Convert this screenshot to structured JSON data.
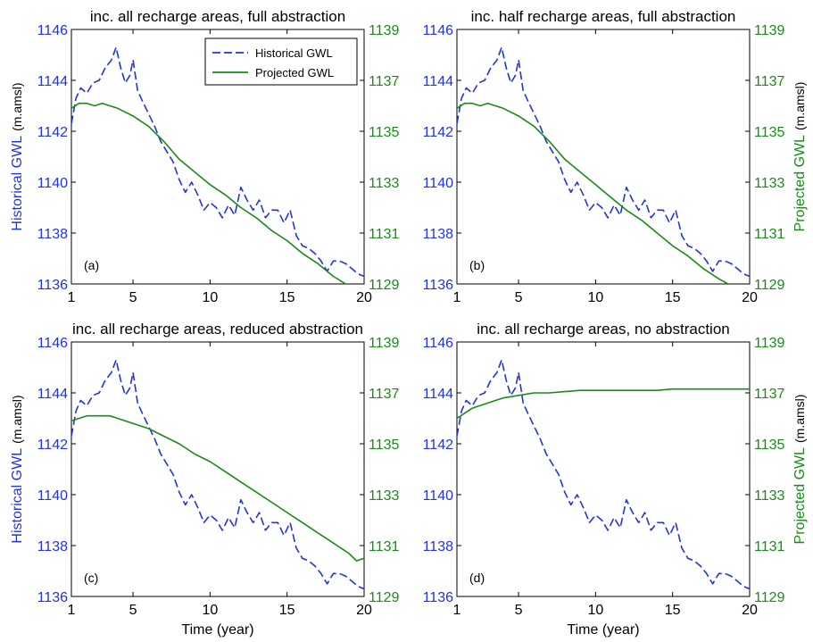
{
  "colors": {
    "historical": "#2233dd",
    "projected": "#1a8a1a",
    "axis": "#000000",
    "background": "#ffffff"
  },
  "chart_data": [
    {
      "type": "line",
      "title": "inc. all recharge areas, full abstraction",
      "panel_label": "(a)",
      "xlabel": "",
      "ylabel_left": "Historical GWL",
      "ylabel_left_unit": "(m.amsl)",
      "ylabel_right": "",
      "ylabel_right_unit": "",
      "xlim": [
        1,
        20
      ],
      "xticks": [
        "1",
        "5",
        "10",
        "15",
        "20"
      ],
      "ylim_left": [
        1136,
        1146
      ],
      "yticks_left": [
        "1136",
        "1138",
        "1140",
        "1142",
        "1144",
        "1146"
      ],
      "ylim_right": [
        1129,
        1139
      ],
      "yticks_right": [
        "1129",
        "1131",
        "1133",
        "1135",
        "1137",
        "1139"
      ],
      "legend": {
        "position": "top-right",
        "entries": [
          "Historical GWL",
          "Projected GWL"
        ]
      },
      "series": [
        {
          "name": "Historical GWL",
          "axis": "left",
          "style": "dashed",
          "x": [
            1,
            1.3,
            1.6,
            2.0,
            2.4,
            2.8,
            3.2,
            3.6,
            3.9,
            4.2,
            4.5,
            4.8,
            5.0,
            5.3,
            5.6,
            6.0,
            6.4,
            6.8,
            7.2,
            7.6,
            8.0,
            8.4,
            8.8,
            9.2,
            9.6,
            10.0,
            10.4,
            10.8,
            11.2,
            11.6,
            12.0,
            12.4,
            12.8,
            13.2,
            13.6,
            14.0,
            14.4,
            14.8,
            15.2,
            15.6,
            16.0,
            16.4,
            16.8,
            17.2,
            17.6,
            18.0,
            18.4,
            18.8,
            19.2,
            19.6,
            20.0
          ],
          "values": [
            1142.3,
            1143.3,
            1143.7,
            1143.5,
            1143.9,
            1144.0,
            1144.5,
            1144.8,
            1145.3,
            1144.5,
            1143.9,
            1144.2,
            1144.8,
            1143.6,
            1143.2,
            1142.7,
            1142.2,
            1141.6,
            1141.2,
            1140.8,
            1140.1,
            1139.6,
            1140.0,
            1139.5,
            1138.9,
            1139.2,
            1139.0,
            1138.6,
            1139.1,
            1138.7,
            1139.8,
            1139.3,
            1138.9,
            1139.3,
            1138.6,
            1138.9,
            1138.9,
            1138.4,
            1138.9,
            1137.9,
            1137.5,
            1137.4,
            1137.2,
            1136.9,
            1136.5,
            1136.9,
            1136.9,
            1136.8,
            1136.6,
            1136.4,
            1136.3
          ]
        },
        {
          "name": "Projected GWL",
          "axis": "right",
          "style": "solid",
          "x": [
            1,
            1.5,
            2.0,
            2.5,
            3.0,
            3.5,
            4.0,
            5.0,
            6.0,
            7.0,
            8.0,
            9.0,
            10.0,
            11.0,
            12.0,
            13.0,
            14.0,
            15.0,
            16.0,
            17.0,
            18.0,
            18.8
          ],
          "values": [
            1135.9,
            1136.1,
            1136.1,
            1136.0,
            1136.1,
            1136.0,
            1135.9,
            1135.6,
            1135.2,
            1134.6,
            1133.9,
            1133.4,
            1132.9,
            1132.5,
            1132.0,
            1131.6,
            1131.1,
            1130.7,
            1130.2,
            1129.8,
            1129.3,
            1129.0
          ]
        }
      ]
    },
    {
      "type": "line",
      "title": "inc. half recharge areas, full abstraction",
      "panel_label": "(b)",
      "xlabel": "",
      "ylabel_left": "",
      "ylabel_left_unit": "",
      "ylabel_right": "Projected GWL",
      "ylabel_right_unit": "(m.amsl)",
      "xlim": [
        1,
        20
      ],
      "xticks": [
        "1",
        "5",
        "10",
        "15",
        "20"
      ],
      "ylim_left": [
        1136,
        1146
      ],
      "yticks_left": [
        "1136",
        "1138",
        "1140",
        "1142",
        "1144",
        "1146"
      ],
      "ylim_right": [
        1129,
        1139
      ],
      "yticks_right": [
        "1129",
        "1131",
        "1133",
        "1135",
        "1137",
        "1139"
      ],
      "series": [
        {
          "name": "Historical GWL",
          "axis": "left",
          "style": "dashed",
          "x": [
            1,
            1.3,
            1.6,
            2.0,
            2.4,
            2.8,
            3.2,
            3.6,
            3.9,
            4.2,
            4.5,
            4.8,
            5.0,
            5.3,
            5.6,
            6.0,
            6.4,
            6.8,
            7.2,
            7.6,
            8.0,
            8.4,
            8.8,
            9.2,
            9.6,
            10.0,
            10.4,
            10.8,
            11.2,
            11.6,
            12.0,
            12.4,
            12.8,
            13.2,
            13.6,
            14.0,
            14.4,
            14.8,
            15.2,
            15.6,
            16.0,
            16.4,
            16.8,
            17.2,
            17.6,
            18.0,
            18.4,
            18.8,
            19.2,
            19.6,
            20.0
          ],
          "values": [
            1142.3,
            1143.3,
            1143.7,
            1143.5,
            1143.9,
            1144.0,
            1144.5,
            1144.8,
            1145.3,
            1144.5,
            1143.9,
            1144.2,
            1144.8,
            1143.6,
            1143.2,
            1142.7,
            1142.2,
            1141.6,
            1141.2,
            1140.8,
            1140.1,
            1139.6,
            1140.0,
            1139.5,
            1138.9,
            1139.2,
            1139.0,
            1138.6,
            1139.1,
            1138.7,
            1139.8,
            1139.3,
            1138.9,
            1139.3,
            1138.6,
            1138.9,
            1138.9,
            1138.4,
            1138.9,
            1137.9,
            1137.5,
            1137.4,
            1137.2,
            1136.9,
            1136.5,
            1136.9,
            1136.9,
            1136.8,
            1136.6,
            1136.4,
            1136.3
          ]
        },
        {
          "name": "Projected GWL",
          "axis": "right",
          "style": "solid",
          "x": [
            1,
            1.5,
            2.0,
            2.5,
            3.0,
            3.5,
            4.0,
            5.0,
            6.0,
            7.0,
            8.0,
            9.0,
            10.0,
            11.0,
            12.0,
            13.0,
            14.0,
            15.0,
            16.0,
            17.0,
            18.0,
            18.6
          ],
          "values": [
            1135.9,
            1136.1,
            1136.1,
            1136.0,
            1136.1,
            1136.0,
            1135.9,
            1135.6,
            1135.2,
            1134.6,
            1133.9,
            1133.4,
            1132.9,
            1132.4,
            1131.9,
            1131.5,
            1131.0,
            1130.5,
            1130.1,
            1129.6,
            1129.2,
            1129.0
          ]
        }
      ]
    },
    {
      "type": "line",
      "title": "inc. all recharge areas, reduced abstraction",
      "panel_label": "(c)",
      "xlabel": "Time (year)",
      "ylabel_left": "Historical GWL",
      "ylabel_left_unit": "(m.amsl)",
      "ylabel_right": "",
      "ylabel_right_unit": "",
      "xlim": [
        1,
        20
      ],
      "xticks": [
        "1",
        "5",
        "10",
        "15",
        "20"
      ],
      "ylim_left": [
        1136,
        1146
      ],
      "yticks_left": [
        "1136",
        "1138",
        "1140",
        "1142",
        "1144",
        "1146"
      ],
      "ylim_right": [
        1129,
        1139
      ],
      "yticks_right": [
        "1129",
        "1131",
        "1133",
        "1135",
        "1137",
        "1139"
      ],
      "series": [
        {
          "name": "Historical GWL",
          "axis": "left",
          "style": "dashed",
          "x": [
            1,
            1.3,
            1.6,
            2.0,
            2.4,
            2.8,
            3.2,
            3.6,
            3.9,
            4.2,
            4.5,
            4.8,
            5.0,
            5.3,
            5.6,
            6.0,
            6.4,
            6.8,
            7.2,
            7.6,
            8.0,
            8.4,
            8.8,
            9.2,
            9.6,
            10.0,
            10.4,
            10.8,
            11.2,
            11.6,
            12.0,
            12.4,
            12.8,
            13.2,
            13.6,
            14.0,
            14.4,
            14.8,
            15.2,
            15.6,
            16.0,
            16.4,
            16.8,
            17.2,
            17.6,
            18.0,
            18.4,
            18.8,
            19.2,
            19.6,
            20.0
          ],
          "values": [
            1142.3,
            1143.3,
            1143.7,
            1143.5,
            1143.9,
            1144.0,
            1144.5,
            1144.8,
            1145.3,
            1144.5,
            1143.9,
            1144.2,
            1144.8,
            1143.6,
            1143.2,
            1142.7,
            1142.2,
            1141.6,
            1141.2,
            1140.8,
            1140.1,
            1139.6,
            1140.0,
            1139.5,
            1138.9,
            1139.2,
            1139.0,
            1138.6,
            1139.1,
            1138.7,
            1139.8,
            1139.3,
            1138.9,
            1139.3,
            1138.6,
            1138.9,
            1138.9,
            1138.4,
            1138.9,
            1137.9,
            1137.5,
            1137.4,
            1137.2,
            1136.9,
            1136.5,
            1136.9,
            1136.9,
            1136.8,
            1136.6,
            1136.4,
            1136.3
          ]
        },
        {
          "name": "Projected GWL",
          "axis": "right",
          "style": "solid",
          "x": [
            1,
            1.5,
            2.0,
            2.5,
            3.0,
            3.5,
            4.0,
            5.0,
            6.0,
            7.0,
            8.0,
            9.0,
            10.0,
            11.0,
            12.0,
            13.0,
            14.0,
            15.0,
            16.0,
            17.0,
            18.0,
            19.0,
            19.5,
            20.0
          ],
          "values": [
            1135.9,
            1136.0,
            1136.1,
            1136.1,
            1136.1,
            1136.1,
            1136.0,
            1135.8,
            1135.6,
            1135.3,
            1135.0,
            1134.6,
            1134.3,
            1133.9,
            1133.5,
            1133.1,
            1132.7,
            1132.3,
            1131.9,
            1131.5,
            1131.1,
            1130.7,
            1130.4,
            1130.5
          ]
        }
      ]
    },
    {
      "type": "line",
      "title": "inc. all recharge areas, no abstraction",
      "panel_label": "(d)",
      "xlabel": "Time (year)",
      "ylabel_left": "",
      "ylabel_left_unit": "",
      "ylabel_right": "Projected GWL",
      "ylabel_right_unit": "(m.amsl)",
      "xlim": [
        1,
        20
      ],
      "xticks": [
        "1",
        "5",
        "10",
        "15",
        "20"
      ],
      "ylim_left": [
        1136,
        1146
      ],
      "yticks_left": [
        "1136",
        "1138",
        "1140",
        "1142",
        "1144",
        "1146"
      ],
      "ylim_right": [
        1129,
        1139
      ],
      "yticks_right": [
        "1129",
        "1131",
        "1133",
        "1135",
        "1137",
        "1139"
      ],
      "series": [
        {
          "name": "Historical GWL",
          "axis": "left",
          "style": "dashed",
          "x": [
            1,
            1.3,
            1.6,
            2.0,
            2.4,
            2.8,
            3.2,
            3.6,
            3.9,
            4.2,
            4.5,
            4.8,
            5.0,
            5.3,
            5.6,
            6.0,
            6.4,
            6.8,
            7.2,
            7.6,
            8.0,
            8.4,
            8.8,
            9.2,
            9.6,
            10.0,
            10.4,
            10.8,
            11.2,
            11.6,
            12.0,
            12.4,
            12.8,
            13.2,
            13.6,
            14.0,
            14.4,
            14.8,
            15.2,
            15.6,
            16.0,
            16.4,
            16.8,
            17.2,
            17.6,
            18.0,
            18.4,
            18.8,
            19.2,
            19.6,
            20.0
          ],
          "values": [
            1142.3,
            1143.3,
            1143.7,
            1143.5,
            1143.9,
            1144.0,
            1144.5,
            1144.8,
            1145.3,
            1144.5,
            1143.9,
            1144.2,
            1144.8,
            1143.6,
            1143.2,
            1142.7,
            1142.2,
            1141.6,
            1141.2,
            1140.8,
            1140.1,
            1139.6,
            1140.0,
            1139.5,
            1138.9,
            1139.2,
            1139.0,
            1138.6,
            1139.1,
            1138.7,
            1139.8,
            1139.3,
            1138.9,
            1139.3,
            1138.6,
            1138.9,
            1138.9,
            1138.4,
            1138.9,
            1137.9,
            1137.5,
            1137.4,
            1137.2,
            1136.9,
            1136.5,
            1136.9,
            1136.9,
            1136.8,
            1136.6,
            1136.4,
            1136.3
          ]
        },
        {
          "name": "Projected GWL",
          "axis": "right",
          "style": "solid",
          "x": [
            1,
            1.5,
            2.0,
            2.5,
            3.0,
            3.5,
            4.0,
            5.0,
            6.0,
            7.0,
            8.0,
            9.0,
            10.0,
            11.0,
            12.0,
            13.0,
            14.0,
            15.0,
            16.0,
            17.0,
            18.0,
            19.0,
            20.0
          ],
          "values": [
            1136.0,
            1136.2,
            1136.4,
            1136.5,
            1136.6,
            1136.7,
            1136.8,
            1136.9,
            1137.0,
            1137.0,
            1137.05,
            1137.1,
            1137.1,
            1137.1,
            1137.1,
            1137.1,
            1137.1,
            1137.15,
            1137.15,
            1137.15,
            1137.15,
            1137.15,
            1137.15
          ]
        }
      ]
    }
  ]
}
